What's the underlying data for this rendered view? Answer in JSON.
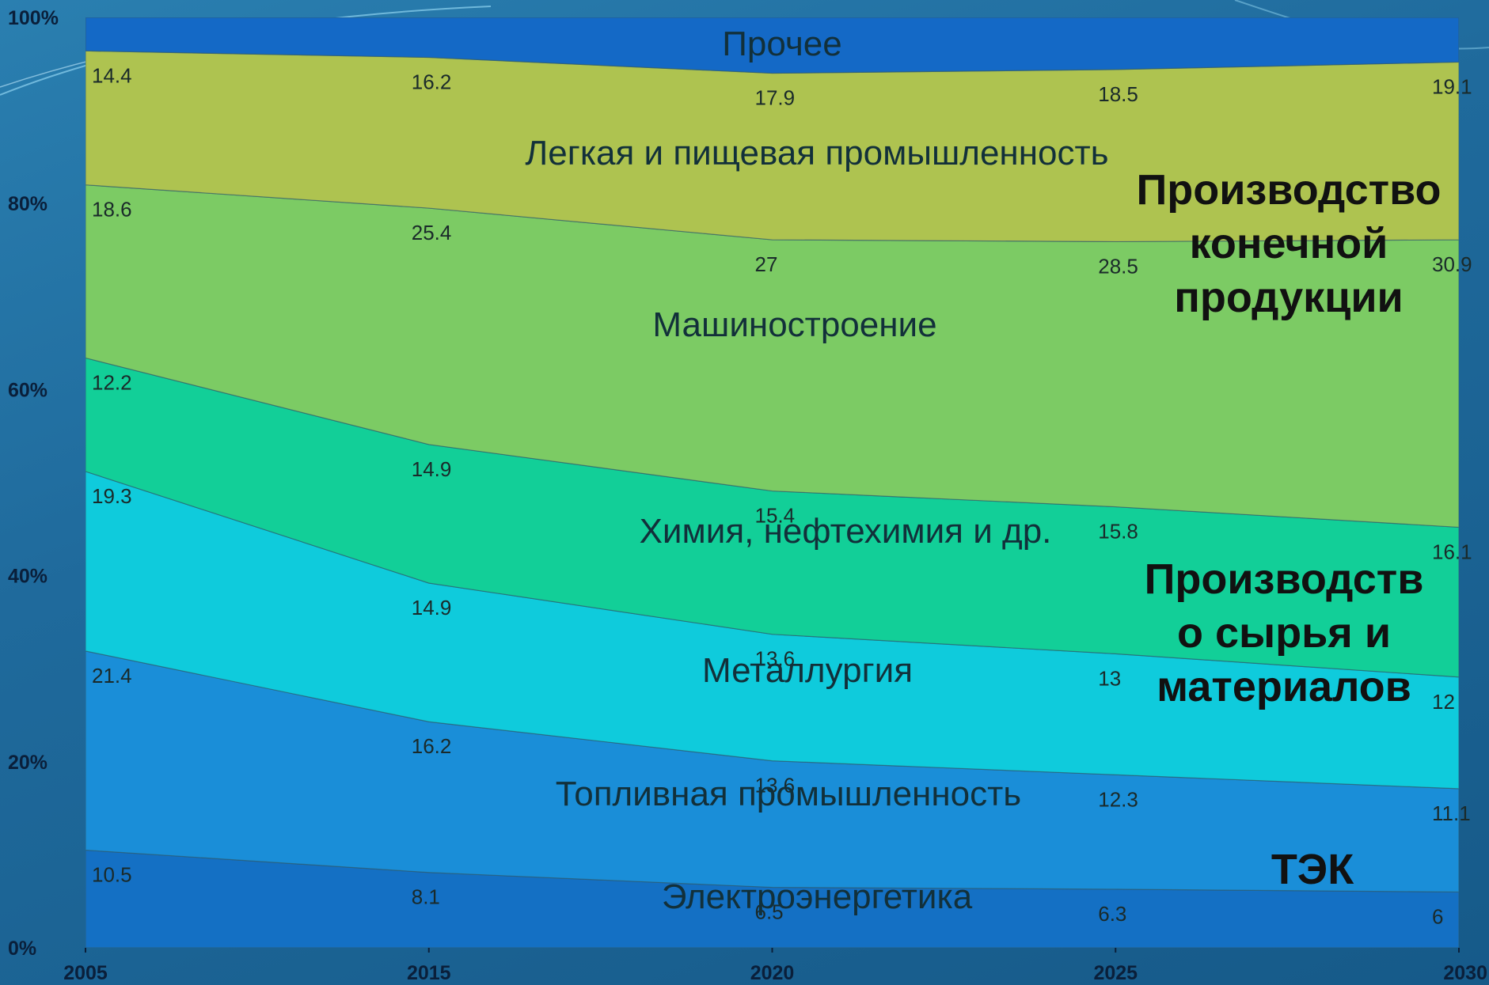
{
  "chart_data": {
    "type": "area",
    "stacked": true,
    "normalized": true,
    "x": [
      "2005",
      "2015",
      "2020",
      "2025",
      "2030"
    ],
    "ylim": [
      0,
      100
    ],
    "y_ticks": [
      "0%",
      "20%",
      "40%",
      "60%",
      "80%",
      "100%"
    ],
    "grid": false,
    "colors": {
      "Электроэнергетика": "#1470c4",
      "Топливная промышленность": "#1a8ed8",
      "Металлургия": "#0fcbdc",
      "Химия, нефтехимия и др.": "#12cf98",
      "Машиностроение": "#7ccb64",
      "Легкая и пищевая промышленность": "#aec350",
      "Прочее": "#1469c6"
    },
    "series": [
      {
        "name": "Электроэнергетика",
        "values": [
          10.5,
          8.1,
          6.5,
          6.3,
          6
        ],
        "value_labels": [
          "10.5",
          "8.1",
          "6.5",
          "6.3",
          "6"
        ]
      },
      {
        "name": "Топливная промышленность",
        "values": [
          21.4,
          16.2,
          13.6,
          12.3,
          11.1
        ],
        "value_labels": [
          "21.4",
          "16.2",
          "13.6",
          "12.3",
          "11.1"
        ]
      },
      {
        "name": "Металлургия",
        "values": [
          19.3,
          14.9,
          13.6,
          13,
          12
        ],
        "value_labels": [
          "19.3",
          "14.9",
          "13.6",
          "13",
          "12"
        ]
      },
      {
        "name": "Химия, нефтехимия и др.",
        "values": [
          12.2,
          14.9,
          15.4,
          15.8,
          16.1
        ],
        "value_labels": [
          "12.2",
          "14.9",
          "15.4",
          "15.8",
          "16.1"
        ]
      },
      {
        "name": "Машиностроение",
        "values": [
          18.6,
          25.4,
          27,
          28.5,
          30.9
        ],
        "value_labels": [
          "18.6",
          "25.4",
          "27",
          "28.5",
          "30.9"
        ]
      },
      {
        "name": "Легкая и пищевая промышленность",
        "values": [
          14.4,
          16.2,
          17.9,
          18.5,
          19.1
        ],
        "value_labels": [
          "14.4",
          "16.2",
          "17.9",
          "18.5",
          "19.1"
        ]
      },
      {
        "name": "Прочее",
        "values": [
          3.6,
          4.3,
          6.0,
          5.6,
          4.8
        ]
      }
    ],
    "group_labels": [
      {
        "key": "final",
        "lines": [
          "Производство",
          "конечной",
          "продукции"
        ]
      },
      {
        "key": "raw",
        "lines": [
          "Производств",
          "о сырья и",
          "материалов"
        ]
      },
      {
        "key": "fec",
        "lines": [
          "ТЭК"
        ]
      }
    ]
  }
}
